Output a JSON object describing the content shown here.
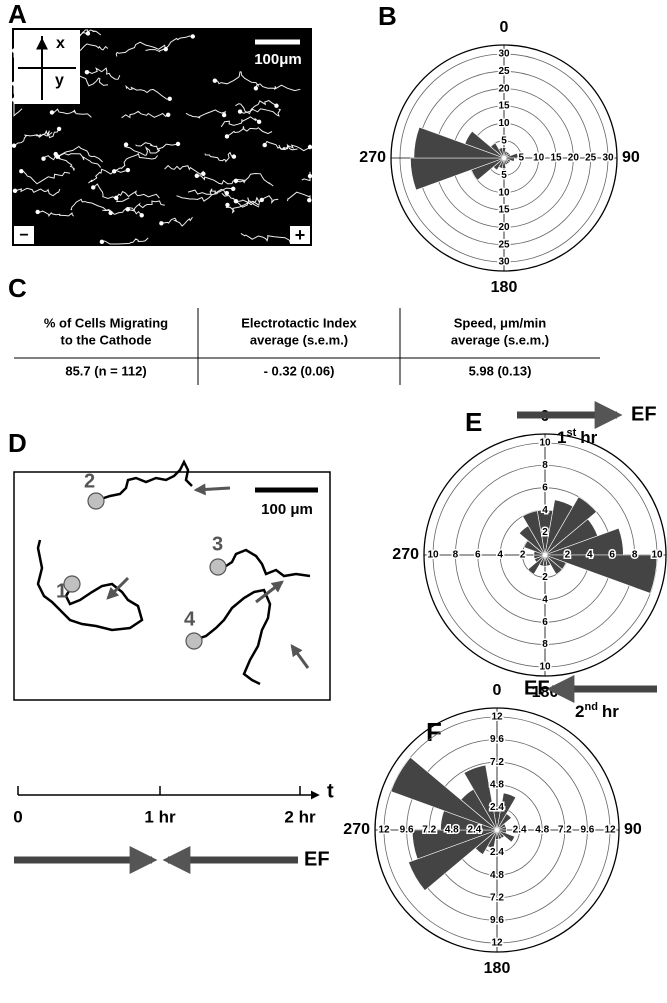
{
  "panels": {
    "a": {
      "label": "A",
      "axis_x": "x",
      "axis_y": "y",
      "scale": "100μm",
      "minus": "−",
      "plus": "+"
    },
    "c": {
      "label": "C",
      "table": {
        "header": [
          [
            "% of Cells Migrating",
            "to the Cathode"
          ],
          [
            "Electrotactic Index",
            "average (s.e.m.)"
          ],
          [
            "Speed, μm/min",
            "average (s.e.m.)"
          ]
        ],
        "rows": [
          [
            "85.7 (n = 112)",
            "- 0.32 (0.06)",
            "5.98 (0.13)"
          ]
        ]
      }
    },
    "d": {
      "label": "D",
      "cells": [
        "1",
        "2",
        "3",
        "4"
      ],
      "scale": "100 μm",
      "timeline": {
        "axis": "t",
        "ticks": [
          "0",
          "1 hr",
          "2 hr"
        ],
        "field": "EF"
      }
    }
  },
  "chart_data": [
    {
      "type": "rose",
      "panel": "B",
      "angle_labels": [
        "0",
        "90",
        "180",
        "270"
      ],
      "ylim": [
        0,
        30
      ],
      "yticks": [
        5,
        10,
        15,
        20,
        25,
        30
      ],
      "color": "#444444",
      "angles": [
        0,
        20,
        40,
        60,
        80,
        100,
        120,
        140,
        160,
        180,
        200,
        220,
        240,
        260,
        280,
        300,
        320,
        340
      ],
      "values": [
        3,
        2,
        2,
        2,
        4,
        3,
        2,
        2,
        2,
        3,
        3,
        4,
        10,
        27,
        26,
        12,
        5,
        3
      ]
    },
    {
      "type": "rose",
      "panel": "E",
      "angle_labels": [
        "0",
        "90",
        "180",
        "270"
      ],
      "field": "EF",
      "period": {
        "num": "1",
        "sup": "st",
        "unit": "hr"
      },
      "ylim": [
        0,
        10
      ],
      "yticks": [
        2,
        4,
        6,
        8,
        10
      ],
      "color": "#444444",
      "angles": [
        0,
        20,
        40,
        60,
        80,
        100,
        120,
        140,
        160,
        180,
        200,
        220,
        240,
        260,
        280,
        300,
        320,
        340
      ],
      "values": [
        4,
        5,
        6,
        5,
        7,
        10,
        2,
        2,
        1,
        1,
        1,
        2,
        1,
        1,
        1,
        2,
        3,
        4
      ]
    },
    {
      "type": "rose",
      "panel": "F",
      "angle_labels": [
        "0",
        "90",
        "180",
        "270"
      ],
      "field": "EF",
      "period": {
        "num": "2",
        "sup": "nd",
        "unit": "hr"
      },
      "ylim": [
        0,
        12
      ],
      "yticks": [
        2.4,
        4.8,
        7.2,
        9.6,
        12
      ],
      "color": "#444444",
      "angles": [
        0,
        20,
        40,
        60,
        80,
        100,
        120,
        140,
        160,
        180,
        200,
        220,
        240,
        260,
        280,
        300,
        320,
        340
      ],
      "values": [
        2,
        4,
        2,
        1,
        1,
        1,
        2,
        1,
        1,
        1,
        2,
        3,
        10,
        9,
        6,
        12,
        5,
        7
      ]
    }
  ]
}
